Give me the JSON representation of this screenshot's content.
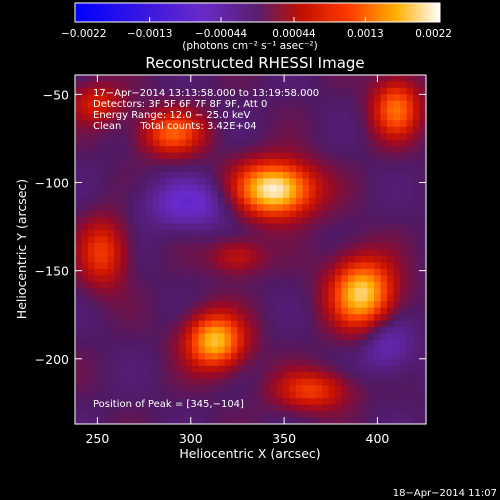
{
  "chart_data": {
    "type": "heatmap",
    "title": "Reconstructed RHESSI Image",
    "xlabel": "Heliocentric X (arcsec)",
    "ylabel": "Heliocentric Y (arcsec)",
    "xlim": [
      238,
      426
    ],
    "ylim": [
      -237,
      -39
    ],
    "x_ticks": [
      250,
      300,
      350,
      400
    ],
    "y_ticks": [
      -50,
      -100,
      -150,
      -200
    ],
    "x_tick_labels": [
      "250",
      "300",
      "350",
      "400"
    ],
    "y_tick_labels": [
      "−50",
      "−100",
      "−150",
      "−200"
    ],
    "colorbar": {
      "min": -0.0022,
      "max": 0.0022,
      "tick_values": [
        -0.0022,
        -0.0013,
        -0.00044,
        0.00044,
        0.0013,
        0.0022
      ],
      "tick_labels": [
        "−0.0022",
        "−0.0013",
        "−0.00044",
        "0.00044",
        "0.0013",
        "0.0022"
      ],
      "unit_label": "(photons cm⁻² s⁻¹ asec⁻²)"
    },
    "annotations": [
      "17−Apr−2014 13:13:58.000 to 13:19:58.000",
      "Detectors: 3F 5F 6F 7F 8F 9F, Att 0",
      "Energy Range: 12.0 − 25.0 keV",
      "Clean      Total counts: 3.42E+04"
    ],
    "peak_label": "Position of Peak = [345,−104]",
    "sources": [
      {
        "x": 345,
        "y": -104,
        "sx": 15,
        "sy": 11,
        "amp": 0.0022
      },
      {
        "x": 392,
        "y": -163,
        "sx": 12,
        "sy": 14,
        "amp": 0.0019
      },
      {
        "x": 313,
        "y": -190,
        "sx": 11,
        "sy": 11,
        "amp": 0.0018
      },
      {
        "x": 410,
        "y": -58,
        "sx": 9,
        "sy": 12,
        "amp": 0.0013
      },
      {
        "x": 290,
        "y": -72,
        "sx": 12,
        "sy": 9,
        "amp": 0.0012
      },
      {
        "x": 253,
        "y": -140,
        "sx": 9,
        "sy": 14,
        "amp": 0.001
      },
      {
        "x": 365,
        "y": -218,
        "sx": 14,
        "sy": 8,
        "amp": 0.001
      },
      {
        "x": 250,
        "y": -55,
        "sx": 10,
        "sy": 8,
        "amp": 0.0008
      },
      {
        "x": 325,
        "y": -142,
        "sx": 10,
        "sy": 7,
        "amp": 0.0007
      },
      {
        "x": 300,
        "y": -112,
        "sx": 18,
        "sy": 10,
        "amp": -0.0007
      },
      {
        "x": 405,
        "y": -192,
        "sx": 10,
        "sy": 12,
        "amp": -0.0006
      }
    ]
  },
  "timestamp": "18−Apr−2014 11:07"
}
